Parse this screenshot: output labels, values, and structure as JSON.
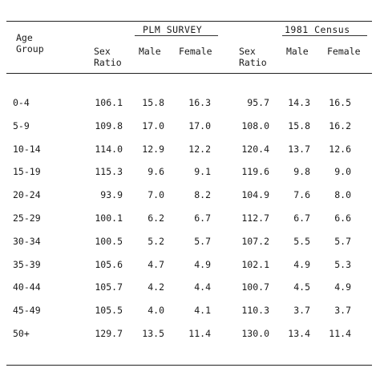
{
  "headers": {
    "age_group_line1": "Age",
    "age_group_line2": "Group",
    "plm_survey": "PLM SURVEY",
    "census_1981": "1981 Census",
    "sex_ratio_line1": "Sex",
    "sex_ratio_line2": "Ratio",
    "male": "Male",
    "female": "Female"
  },
  "rows": [
    {
      "age": "0-4",
      "plm_ratio": "106.1",
      "plm_male": "15.8",
      "plm_female": "16.3",
      "c_ratio": "95.7",
      "c_male": "14.3",
      "c_female": "16.5"
    },
    {
      "age": "5-9",
      "plm_ratio": "109.8",
      "plm_male": "17.0",
      "plm_female": "17.0",
      "c_ratio": "108.0",
      "c_male": "15.8",
      "c_female": "16.2"
    },
    {
      "age": "10-14",
      "plm_ratio": "114.0",
      "plm_male": "12.9",
      "plm_female": "12.2",
      "c_ratio": "120.4",
      "c_male": "13.7",
      "c_female": "12.6"
    },
    {
      "age": "15-19",
      "plm_ratio": "115.3",
      "plm_male": "9.6",
      "plm_female": "9.1",
      "c_ratio": "119.6",
      "c_male": "9.8",
      "c_female": "9.0"
    },
    {
      "age": "20-24",
      "plm_ratio": "93.9",
      "plm_male": "7.0",
      "plm_female": "8.2",
      "c_ratio": "104.9",
      "c_male": "7.6",
      "c_female": "8.0"
    },
    {
      "age": "25-29",
      "plm_ratio": "100.1",
      "plm_male": "6.2",
      "plm_female": "6.7",
      "c_ratio": "112.7",
      "c_male": "6.7",
      "c_female": "6.6"
    },
    {
      "age": "30-34",
      "plm_ratio": "100.5",
      "plm_male": "5.2",
      "plm_female": "5.7",
      "c_ratio": "107.2",
      "c_male": "5.5",
      "c_female": "5.7"
    },
    {
      "age": "35-39",
      "plm_ratio": "105.6",
      "plm_male": "4.7",
      "plm_female": "4.9",
      "c_ratio": "102.1",
      "c_male": "4.9",
      "c_female": "5.3"
    },
    {
      "age": "40-44",
      "plm_ratio": "105.7",
      "plm_male": "4.2",
      "plm_female": "4.4",
      "c_ratio": "100.7",
      "c_male": "4.5",
      "c_female": "4.9"
    },
    {
      "age": "45-49",
      "plm_ratio": "105.5",
      "plm_male": "4.0",
      "plm_female": "4.1",
      "c_ratio": "110.3",
      "c_male": "3.7",
      "c_female": "3.7"
    },
    {
      "age": "50+",
      "plm_ratio": "129.7",
      "plm_male": "13.5",
      "plm_female": "11.4",
      "c_ratio": "130.0",
      "c_male": "13.4",
      "c_female": "11.4"
    }
  ]
}
